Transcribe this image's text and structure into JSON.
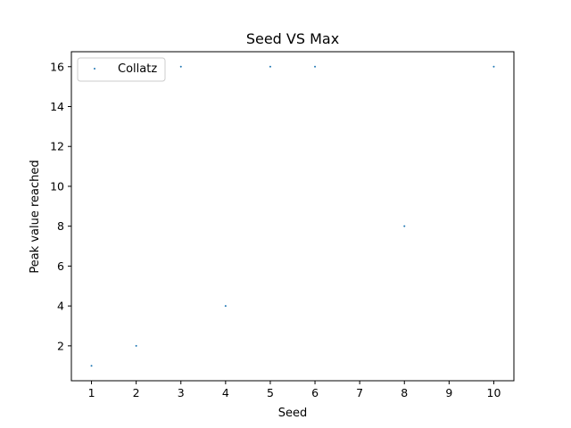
{
  "chart_data": {
    "type": "scatter",
    "title": "Seed VS Max",
    "xlabel": "Seed",
    "ylabel": "Peak value reached",
    "xlim": [
      0.55,
      10.45
    ],
    "ylim": [
      0.25,
      16.75
    ],
    "xticks": [
      1,
      2,
      3,
      4,
      5,
      6,
      7,
      8,
      9,
      10
    ],
    "yticks": [
      2,
      4,
      6,
      8,
      10,
      12,
      14,
      16
    ],
    "grid": false,
    "legend_position": "top-left",
    "series": [
      {
        "name": "Collatz",
        "color": "#1f77b4",
        "x": [
          1,
          2,
          3,
          4,
          5,
          6,
          8,
          10
        ],
        "y": [
          1,
          2,
          16,
          4,
          16,
          16,
          8,
          16
        ]
      }
    ]
  }
}
